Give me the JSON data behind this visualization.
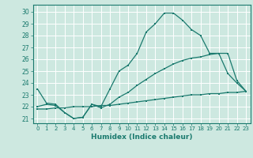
{
  "xlabel": "Humidex (Indice chaleur)",
  "bg_color": "#cde8e0",
  "grid_color": "#ffffff",
  "line_color": "#1a7a6e",
  "xlim": [
    -0.5,
    23.5
  ],
  "ylim": [
    20.6,
    30.6
  ],
  "xticks": [
    0,
    1,
    2,
    3,
    4,
    5,
    6,
    7,
    8,
    9,
    10,
    11,
    12,
    13,
    14,
    15,
    16,
    17,
    18,
    19,
    20,
    21,
    22,
    23
  ],
  "yticks": [
    21,
    22,
    23,
    24,
    25,
    26,
    27,
    28,
    29,
    30
  ],
  "line1_x": [
    0,
    1,
    2,
    3,
    4,
    5,
    6,
    7,
    8,
    9,
    10,
    11,
    12,
    13,
    14,
    15,
    16,
    17,
    18,
    19,
    20,
    21,
    22,
    23
  ],
  "line1_y": [
    23.5,
    22.3,
    22.2,
    21.5,
    21.0,
    21.1,
    22.2,
    22.0,
    23.5,
    25.0,
    25.5,
    26.5,
    28.3,
    29.0,
    29.9,
    29.9,
    29.3,
    28.5,
    28.0,
    26.5,
    26.5,
    24.8,
    24.0,
    23.3
  ],
  "line2_x": [
    0,
    1,
    2,
    3,
    4,
    5,
    6,
    7,
    8,
    9,
    10,
    11,
    12,
    13,
    14,
    15,
    16,
    17,
    18,
    19,
    20,
    21,
    22,
    23
  ],
  "line2_y": [
    22.0,
    22.2,
    22.1,
    21.5,
    21.0,
    21.1,
    22.2,
    21.9,
    22.2,
    22.8,
    23.2,
    23.8,
    24.3,
    24.8,
    25.2,
    25.6,
    25.9,
    26.1,
    26.2,
    26.4,
    26.5,
    26.5,
    24.2,
    23.3
  ],
  "line3_x": [
    0,
    1,
    2,
    3,
    4,
    5,
    6,
    7,
    8,
    9,
    10,
    11,
    12,
    13,
    14,
    15,
    16,
    17,
    18,
    19,
    20,
    21,
    22,
    23
  ],
  "line3_y": [
    21.8,
    21.8,
    21.9,
    21.9,
    22.0,
    22.0,
    22.0,
    22.1,
    22.1,
    22.2,
    22.3,
    22.4,
    22.5,
    22.6,
    22.7,
    22.8,
    22.9,
    23.0,
    23.0,
    23.1,
    23.1,
    23.2,
    23.2,
    23.3
  ]
}
